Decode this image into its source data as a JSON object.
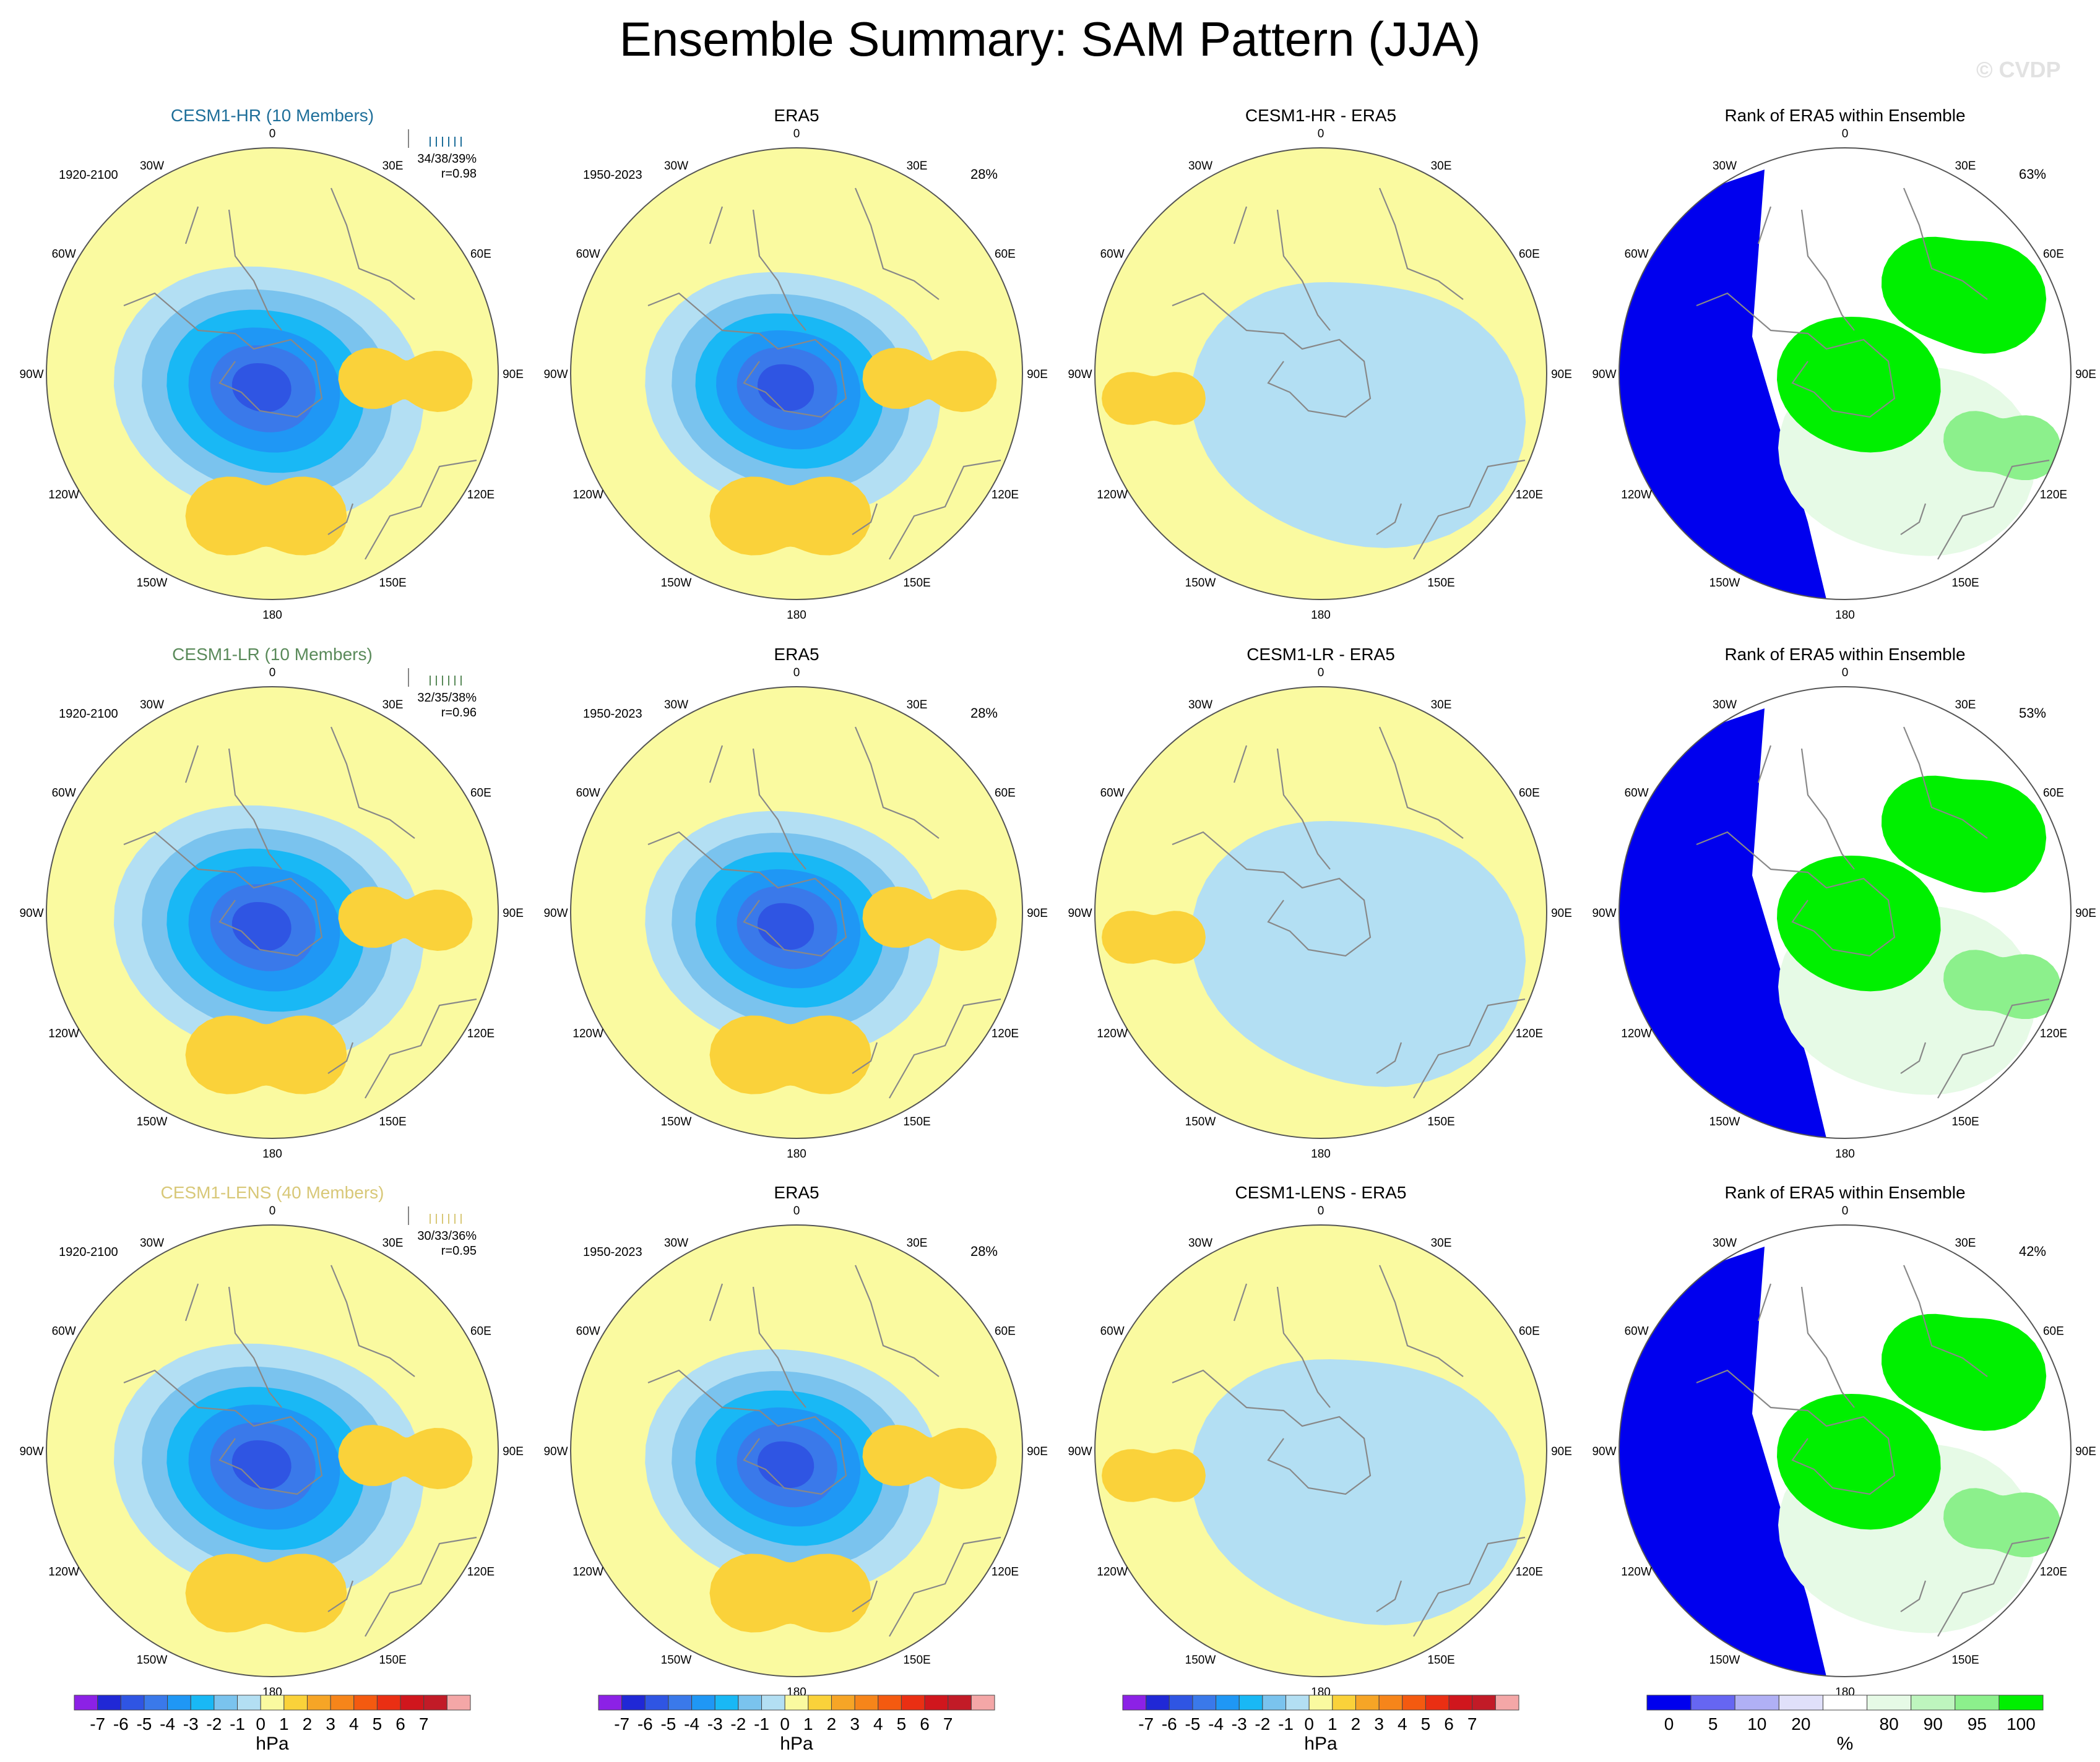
{
  "title": "Ensemble Summary: SAM Pattern (JJA)",
  "watermark": "© CVDP",
  "colors": {
    "hpa_scale": [
      "#8c21e6",
      "#2028d6",
      "#2f55e3",
      "#3a79ea",
      "#1f97f5",
      "#19b8f5",
      "#7ac3ee",
      "#b3dff3",
      "#fafaa0",
      "#fad23a",
      "#f6a526",
      "#f6851a",
      "#f45a10",
      "#ea2f13",
      "#d0161d",
      "#c21b27",
      "#f4a7a7"
    ],
    "rank_scale": [
      "#0000ee",
      "#6666f2",
      "#b0b0f5",
      "#e0e0fa",
      "#ffffff",
      "#e6fae6",
      "#bef5be",
      "#8cf08c",
      "#00f000"
    ],
    "land_outline": "#888888",
    "rank_positive": "#00f000",
    "rank_low": "#0000ee"
  },
  "chart_data": [
    {
      "type": "map",
      "row": "CESM1-HR",
      "title": "CESM1-HR (10 Members)",
      "title_color": "#1f6f9a",
      "period": "1920-2100",
      "stats": "34/38/39%",
      "corr": "r=0.98",
      "units": "hPa"
    },
    {
      "type": "map",
      "row": "CESM1-HR",
      "title": "ERA5",
      "period": "1950-2023",
      "pct": "28%",
      "units": "hPa"
    },
    {
      "type": "map",
      "row": "CESM1-HR",
      "title": "CESM1-HR - ERA5",
      "units": "hPa"
    },
    {
      "type": "map",
      "row": "CESM1-HR",
      "title": "Rank of ERA5 within Ensemble",
      "pct": "63%",
      "units": "%"
    },
    {
      "type": "map",
      "row": "CESM1-LR",
      "title": "CESM1-LR (10 Members)",
      "title_color": "#5a8a5a",
      "period": "1920-2100",
      "stats": "32/35/38%",
      "corr": "r=0.96",
      "units": "hPa"
    },
    {
      "type": "map",
      "row": "CESM1-LR",
      "title": "ERA5",
      "period": "1950-2023",
      "pct": "28%",
      "units": "hPa"
    },
    {
      "type": "map",
      "row": "CESM1-LR",
      "title": "CESM1-LR - ERA5",
      "units": "hPa"
    },
    {
      "type": "map",
      "row": "CESM1-LR",
      "title": "Rank of ERA5 within Ensemble",
      "pct": "53%",
      "units": "%"
    },
    {
      "type": "map",
      "row": "CESM1-LENS",
      "title": "CESM1-LENS (40 Members)",
      "title_color": "#d8c878",
      "period": "1920-2100",
      "stats": "30/33/36%",
      "corr": "r=0.95",
      "units": "hPa"
    },
    {
      "type": "map",
      "row": "CESM1-LENS",
      "title": "ERA5",
      "period": "1950-2023",
      "pct": "28%",
      "units": "hPa"
    },
    {
      "type": "map",
      "row": "CESM1-LENS",
      "title": "CESM1-LENS - ERA5",
      "units": "hPa"
    },
    {
      "type": "map",
      "row": "CESM1-LENS",
      "title": "Rank of ERA5 within Ensemble",
      "pct": "42%",
      "units": "%"
    }
  ],
  "lon_labels": [
    "0",
    "30E",
    "60E",
    "90E",
    "120E",
    "150E",
    "180",
    "150W",
    "120W",
    "90W",
    "60W",
    "30W"
  ],
  "colorbars": [
    {
      "type": "hpa",
      "ticks": [
        "-7",
        "-6",
        "-5",
        "-4",
        "-3",
        "-2",
        "-1",
        "0",
        "1",
        "2",
        "3",
        "4",
        "5",
        "6",
        "7"
      ],
      "label": "hPa"
    },
    {
      "type": "hpa",
      "ticks": [
        "-7",
        "-6",
        "-5",
        "-4",
        "-3",
        "-2",
        "-1",
        "0",
        "1",
        "2",
        "3",
        "4",
        "5",
        "6",
        "7"
      ],
      "label": "hPa"
    },
    {
      "type": "hpa",
      "ticks": [
        "-7",
        "-6",
        "-5",
        "-4",
        "-3",
        "-2",
        "-1",
        "0",
        "1",
        "2",
        "3",
        "4",
        "5",
        "6",
        "7"
      ],
      "label": "hPa"
    },
    {
      "type": "rank",
      "ticks": [
        "0",
        "5",
        "10",
        "20",
        "80",
        "90",
        "95",
        "100"
      ],
      "label": "%"
    }
  ]
}
